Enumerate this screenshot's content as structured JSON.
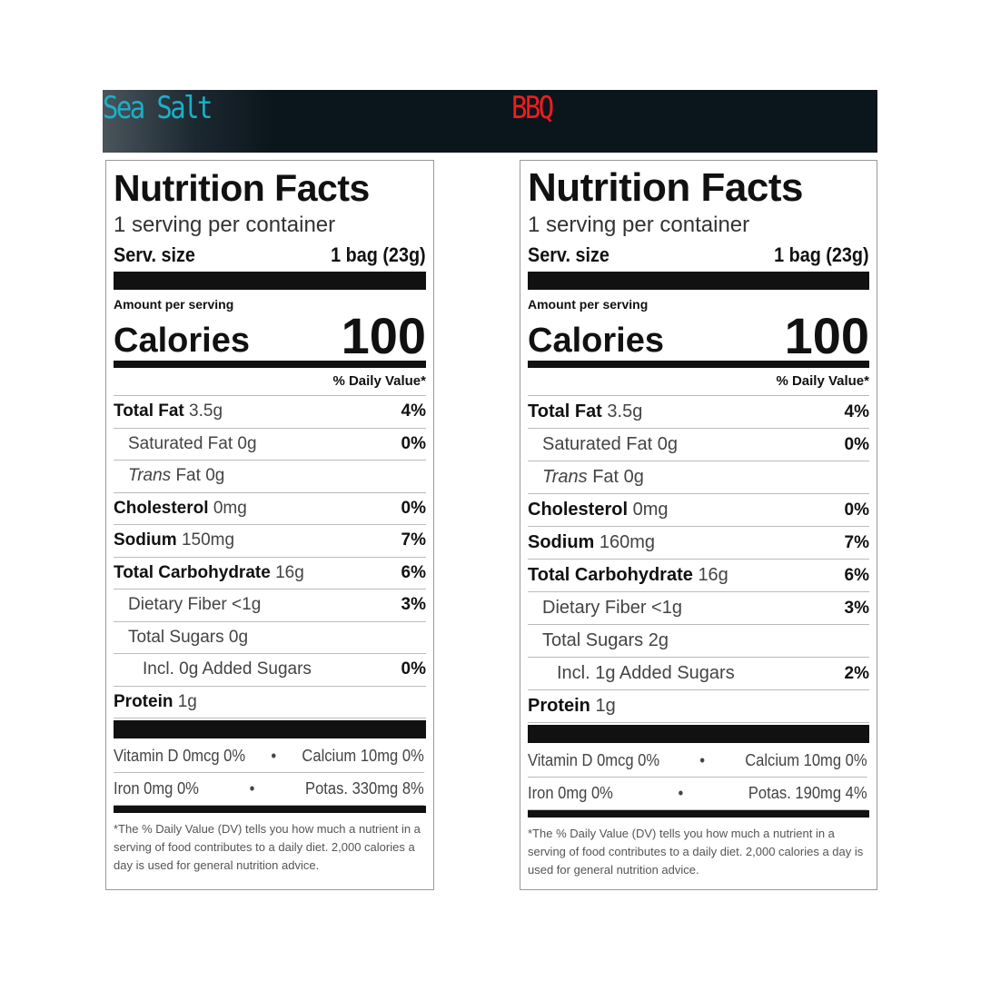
{
  "header": {
    "flavors": [
      "Sea Salt",
      "BBQ"
    ],
    "colors": {
      "sea_salt": "#1ab0c8",
      "bbq": "#f21c1c",
      "bar": "#0b151c"
    }
  },
  "labels": [
    {
      "flavor": "Sea Salt",
      "title": "Nutrition Facts",
      "servings": "1 serving per container",
      "serv_size_label": "Serv. size",
      "serv_size_value": "1 bag (23g)",
      "amount_per_serving": "Amount per serving",
      "calories_label": "Calories",
      "calories_value": "100",
      "dv_header": "% Daily Value*",
      "nutrients": [
        {
          "name": "Total Fat",
          "amount": "3.5g",
          "dv": "4%",
          "bold": true,
          "indent": 0
        },
        {
          "name": "Saturated Fat",
          "amount": "0g",
          "dv": "0%",
          "bold": false,
          "indent": 1
        },
        {
          "name": "Trans Fat",
          "amount": "0g",
          "dv": "",
          "bold": false,
          "indent": 1,
          "italic_prefix": "Trans"
        },
        {
          "name": "Cholesterol",
          "amount": "0mg",
          "dv": "0%",
          "bold": true,
          "indent": 0
        },
        {
          "name": "Sodium",
          "amount": "150mg",
          "dv": "7%",
          "bold": true,
          "indent": 0
        },
        {
          "name": "Total Carbohydrate",
          "amount": "16g",
          "dv": "6%",
          "bold": true,
          "indent": 0
        },
        {
          "name": "Dietary Fiber",
          "amount": "<1g",
          "dv": "3%",
          "bold": false,
          "indent": 1
        },
        {
          "name": "Total Sugars",
          "amount": "0g",
          "dv": "",
          "bold": false,
          "indent": 1
        },
        {
          "name": "Incl. 0g Added Sugars",
          "amount": "",
          "dv": "0%",
          "bold": false,
          "indent": 2
        },
        {
          "name": "Protein",
          "amount": "1g",
          "dv": "",
          "bold": true,
          "indent": 0
        }
      ],
      "vitamins": [
        {
          "left": "Vitamin D 0mcg 0%",
          "right": "Calcium 10mg 0%"
        },
        {
          "left": "Iron 0mg 0%",
          "right": "Potas. 330mg 8%"
        }
      ],
      "footnote": "*The % Daily Value (DV) tells you how much a nutrient in a serving of food contributes to a daily diet. 2,000 calories a day is used for general nutrition advice."
    },
    {
      "flavor": "BBQ",
      "title": "Nutrition Facts",
      "servings": "1 serving per container",
      "serv_size_label": "Serv. size",
      "serv_size_value": "1 bag (23g)",
      "amount_per_serving": "Amount per serving",
      "calories_label": "Calories",
      "calories_value": "100",
      "dv_header": "% Daily Value*",
      "nutrients": [
        {
          "name": "Total Fat",
          "amount": "3.5g",
          "dv": "4%",
          "bold": true,
          "indent": 0
        },
        {
          "name": "Saturated Fat",
          "amount": "0g",
          "dv": "0%",
          "bold": false,
          "indent": 1
        },
        {
          "name": "Trans Fat",
          "amount": "0g",
          "dv": "",
          "bold": false,
          "indent": 1,
          "italic_prefix": "Trans"
        },
        {
          "name": "Cholesterol",
          "amount": "0mg",
          "dv": "0%",
          "bold": true,
          "indent": 0
        },
        {
          "name": "Sodium",
          "amount": "160mg",
          "dv": "7%",
          "bold": true,
          "indent": 0
        },
        {
          "name": "Total Carbohydrate",
          "amount": "16g",
          "dv": "6%",
          "bold": true,
          "indent": 0
        },
        {
          "name": "Dietary Fiber",
          "amount": "<1g",
          "dv": "3%",
          "bold": false,
          "indent": 1
        },
        {
          "name": "Total Sugars",
          "amount": "2g",
          "dv": "",
          "bold": false,
          "indent": 1
        },
        {
          "name": "Incl. 1g Added Sugars",
          "amount": "",
          "dv": "2%",
          "bold": false,
          "indent": 2
        },
        {
          "name": "Protein",
          "amount": "1g",
          "dv": "",
          "bold": true,
          "indent": 0
        }
      ],
      "vitamins": [
        {
          "left": "Vitamin D 0mcg 0%",
          "right": "Calcium 10mg 0%"
        },
        {
          "left": "Iron 0mg 0%",
          "right": "Potas. 190mg 4%"
        }
      ],
      "footnote": "*The % Daily Value (DV) tells you how much a nutrient in a serving of food contributes to a daily diet. 2,000 calories a day is used for general nutrition advice."
    }
  ]
}
